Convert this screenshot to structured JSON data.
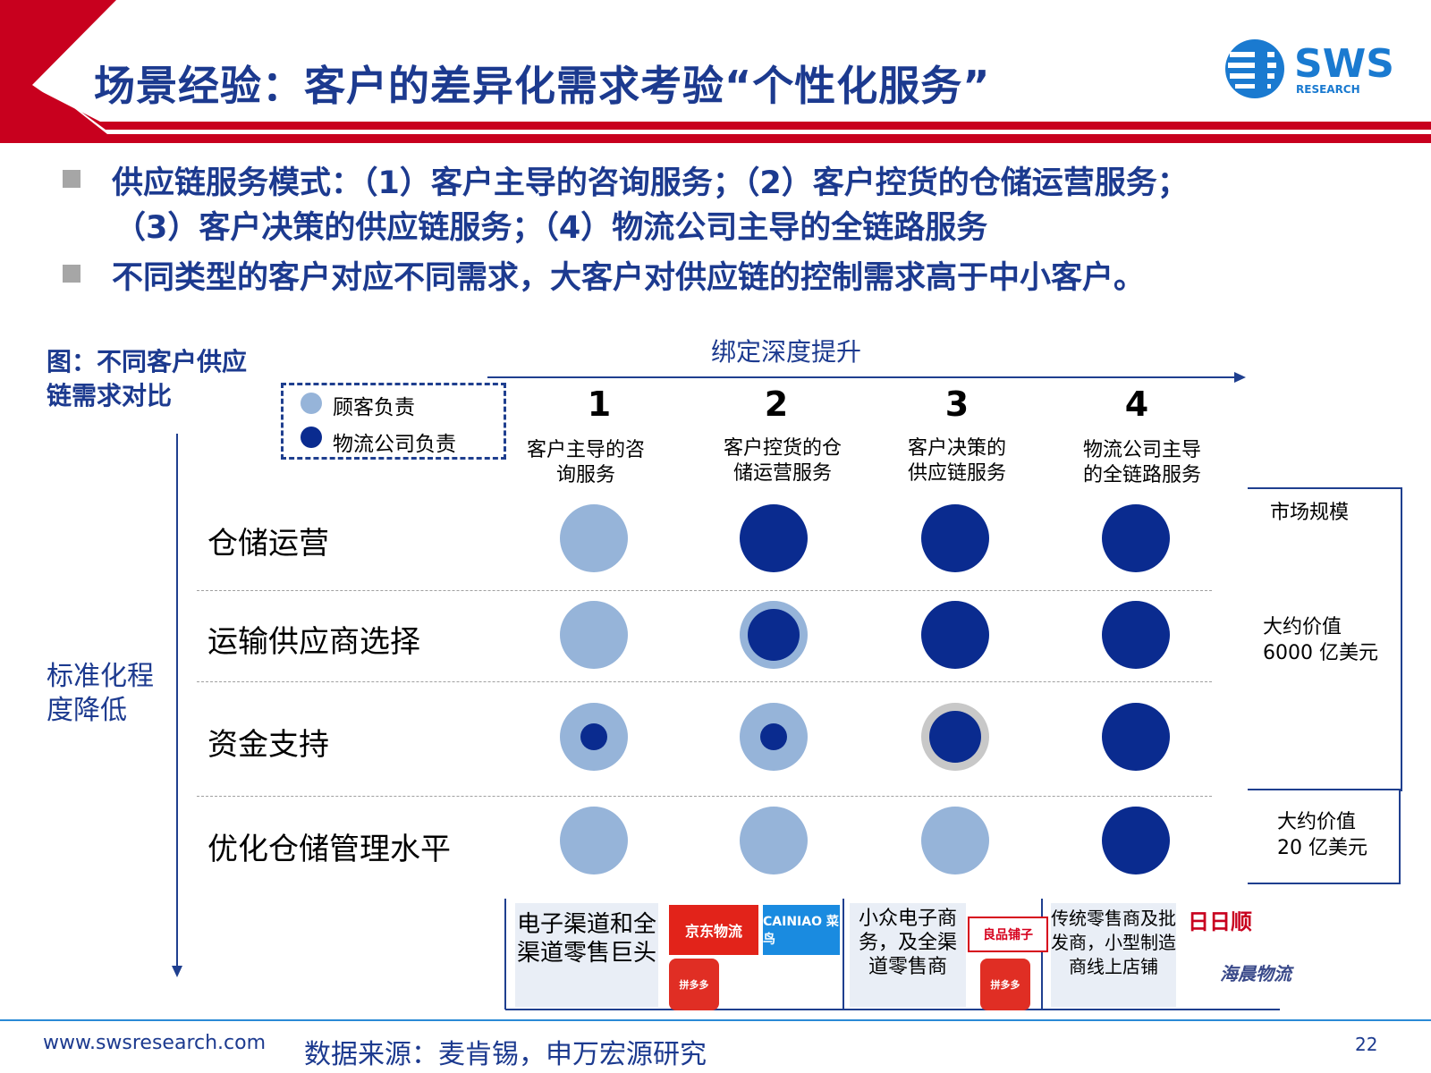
{
  "title": "场景经验：客户的差异化需求考验“个性化服务”",
  "logo": {
    "main": "SWS",
    "sub": "RESEARCH"
  },
  "bullets": [
    {
      "line1": "供应链服务模式：（1）客户主导的咨询服务；（2）客户控货的仓储运营服务；",
      "line2": "（3）客户决策的供应链服务；（4）物流公司主导的全链路服务"
    },
    {
      "line1": "不同类型的客户对应不同需求，大客户对供应链的控制需求高于中小客户。"
    }
  ],
  "figure": {
    "label": "图：不同客户供应链需求对比",
    "binding_axis": "绑定深度提升",
    "standardization_axis": "标准化程度降低",
    "legend": [
      {
        "label": "顾客负责",
        "color": "#96b4d9"
      },
      {
        "label": "物流公司负责",
        "color": "#0a2b8f"
      }
    ],
    "columns": [
      {
        "num": "1",
        "desc": "客户主导的咨询服务"
      },
      {
        "num": "2",
        "desc": "客户控货的仓储运营服务"
      },
      {
        "num": "3",
        "desc": "客户决策的供应链服务"
      },
      {
        "num": "4",
        "desc": "物流公司主导的全链路服务"
      }
    ],
    "rows": [
      {
        "label": "仓储运营",
        "cells": [
          "customer",
          "logistics",
          "logistics",
          "logistics"
        ]
      },
      {
        "label": "运输供应商选择",
        "cells": [
          "customer",
          "mostly-logistics",
          "logistics",
          "logistics"
        ]
      },
      {
        "label": "资金支持",
        "cells": [
          "mostly-customer",
          "mostly-customer",
          "mostly-logistics",
          "logistics"
        ]
      },
      {
        "label": "优化仓储管理水平",
        "cells": [
          "customer",
          "customer",
          "customer",
          "logistics"
        ]
      }
    ],
    "market": {
      "header": "市场规模",
      "value1_line1": "大约价值",
      "value1_line2": "6000 亿美元",
      "value2_line1": "大约价值",
      "value2_line2": "20 亿美元"
    },
    "segments": [
      {
        "label": "电子渠道和全渠道零售巨头",
        "logos": [
          "京东物流",
          "CAINIAO 菜鸟",
          "拼多多"
        ]
      },
      {
        "label": "小众电子商务，及全渠道零售商",
        "logos": [
          "良品铺子",
          "拼多多"
        ]
      },
      {
        "label": "传统零售商及批发商，小型制造商线上店铺",
        "logos": [
          "日日顺",
          "海晨物流"
        ]
      }
    ]
  },
  "footer": {
    "url": "www.swsresearch.com",
    "source": "数据来源：麦肯锡，申万宏源研究",
    "page": "22"
  }
}
